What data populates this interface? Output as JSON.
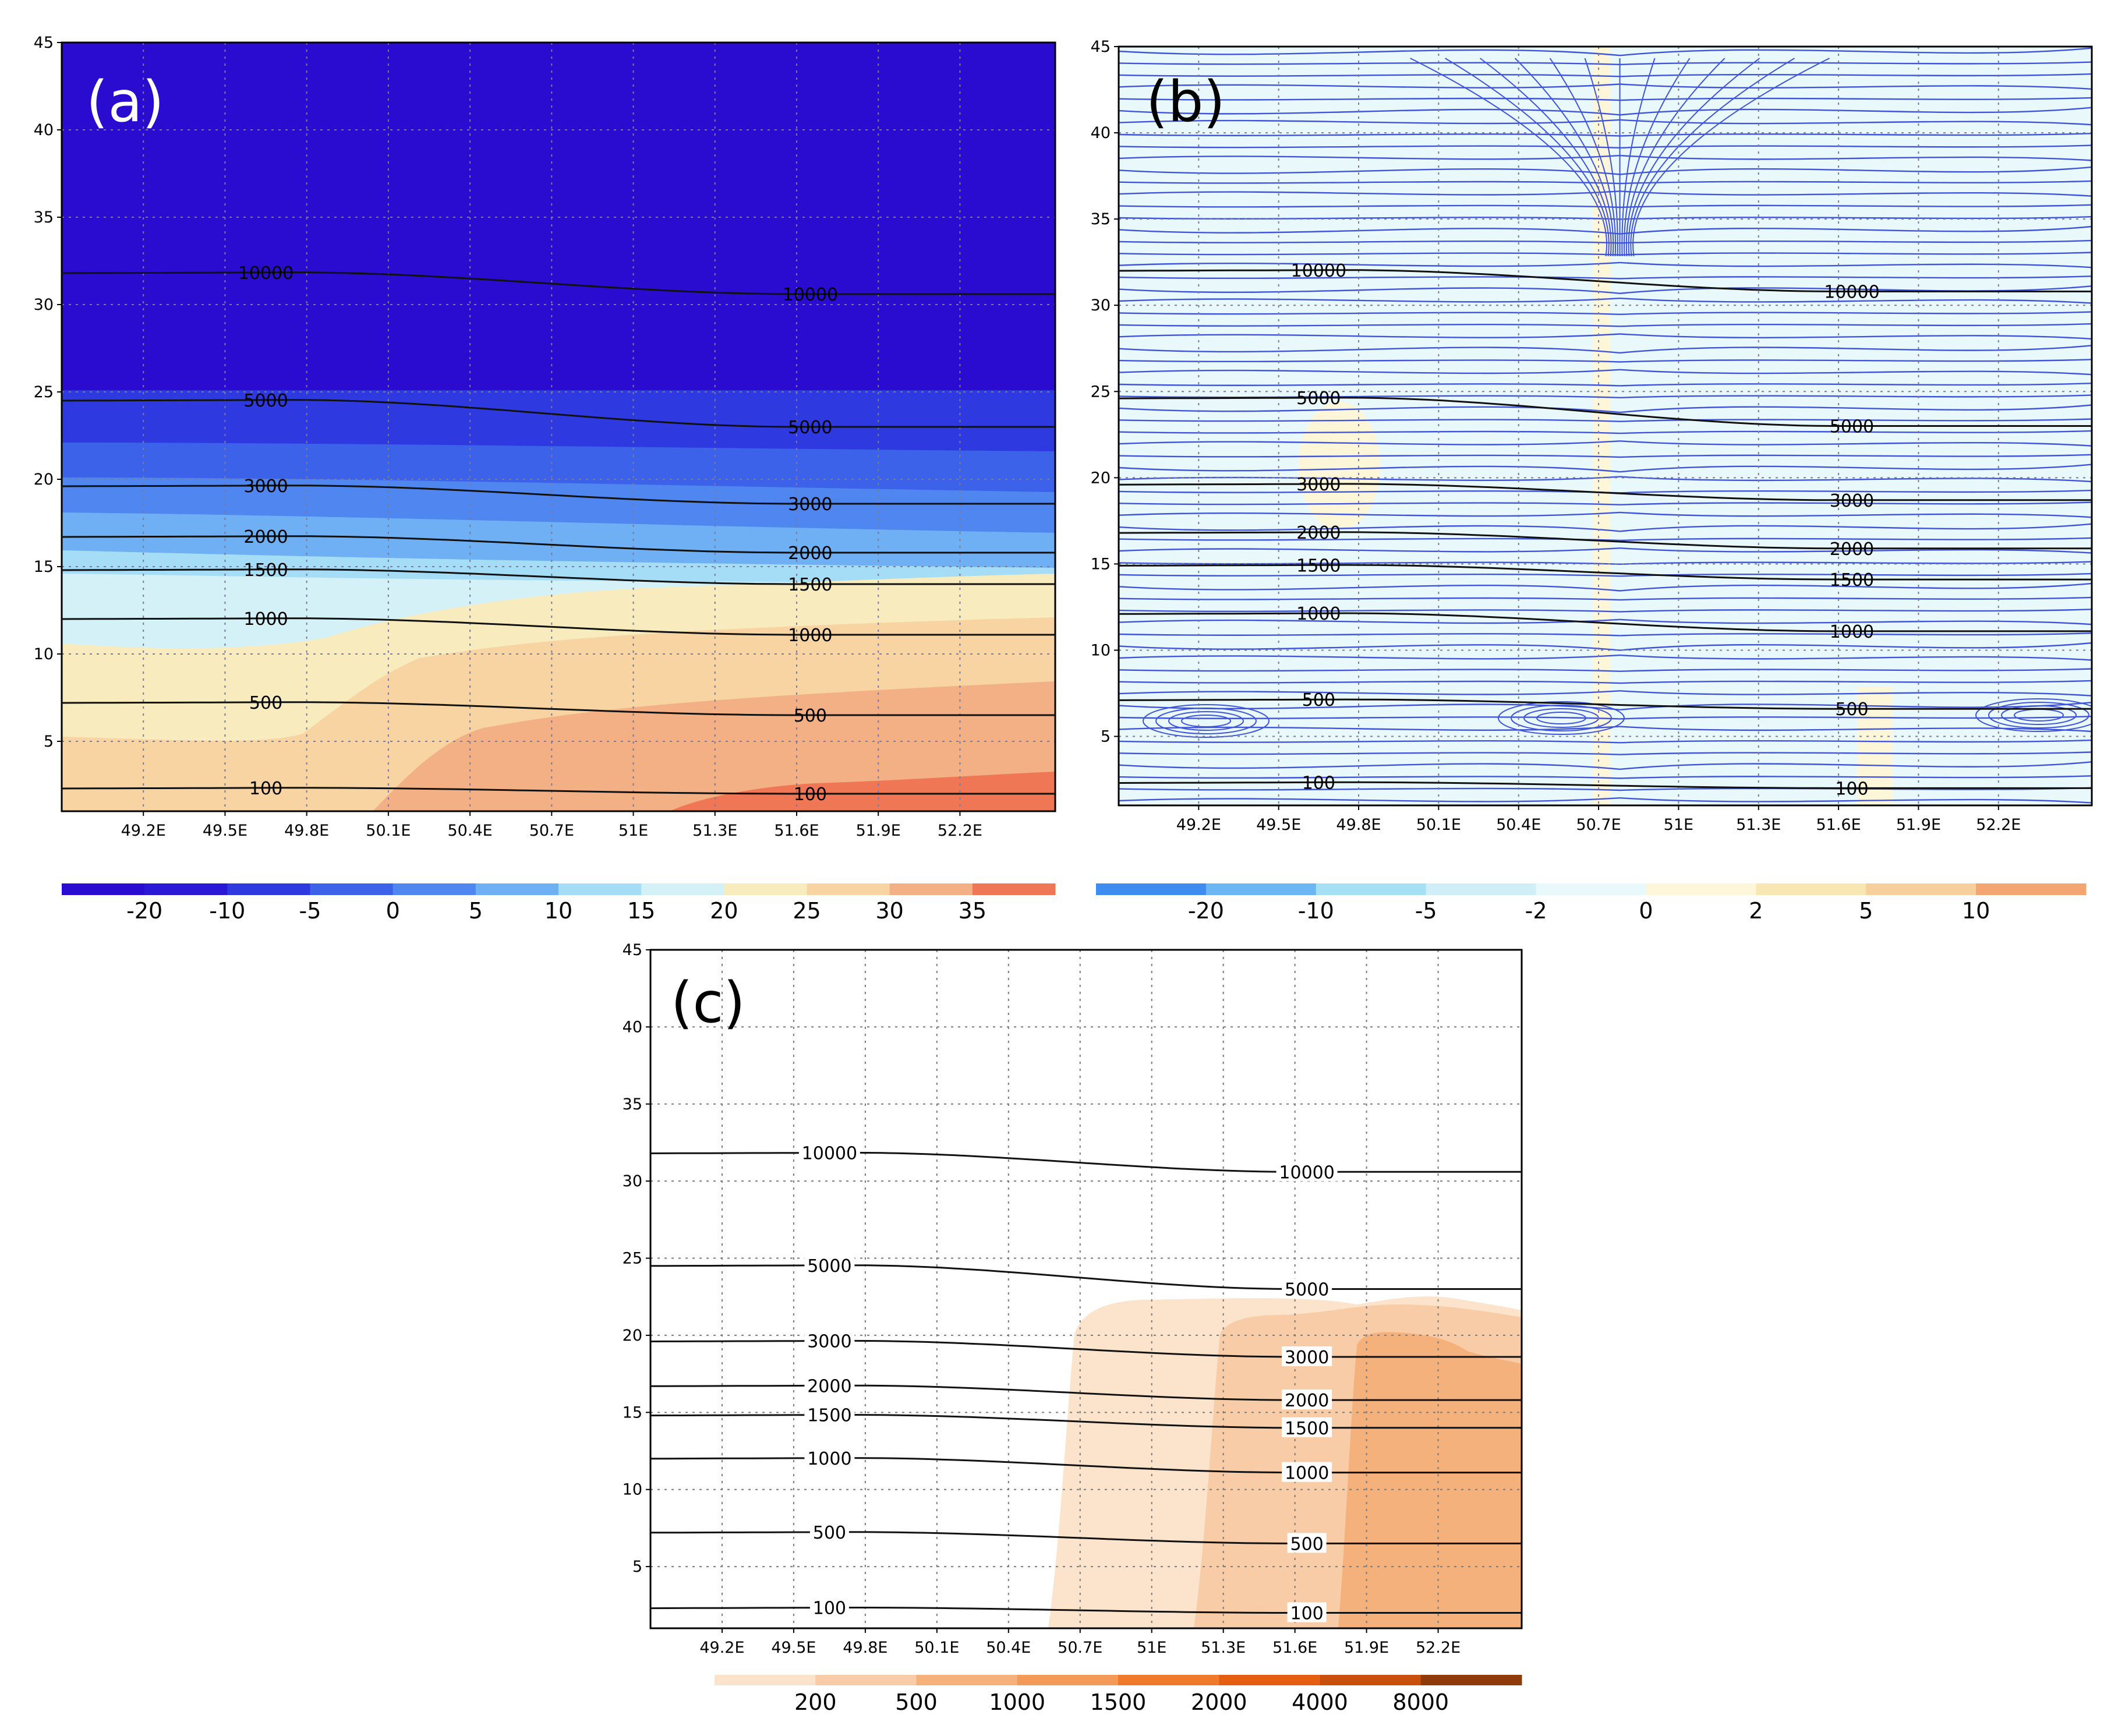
{
  "chart_data": [
    {
      "type": "heatmap",
      "panel": "(a)",
      "title": "",
      "xlabel": "",
      "ylabel": "",
      "x_ticks": [
        "49.2E",
        "49.5E",
        "49.8E",
        "50.1E",
        "50.4E",
        "50.7E",
        "51E",
        "51.3E",
        "51.6E",
        "51.9E",
        "52.2E"
      ],
      "y_ticks": [
        "5",
        "10",
        "15",
        "20",
        "25",
        "30",
        "35",
        "40",
        "45"
      ],
      "xlim": [
        48.9,
        52.55
      ],
      "ylim": [
        1,
        45
      ],
      "contours": [
        {
          "label": "10000",
          "left_y": 31.8,
          "right_y": 30.6
        },
        {
          "label": "5000",
          "left_y": 24.5,
          "right_y": 23.0
        },
        {
          "label": "3000",
          "left_y": 19.6,
          "right_y": 18.6
        },
        {
          "label": "2000",
          "left_y": 16.7,
          "right_y": 15.8
        },
        {
          "label": "1500",
          "left_y": 14.8,
          "right_y": 14.0
        },
        {
          "label": "1000",
          "left_y": 12.0,
          "right_y": 11.1
        },
        {
          "label": "500",
          "left_y": 7.2,
          "right_y": 6.5
        },
        {
          "label": "100",
          "left_y": 2.3,
          "right_y": 2.0
        }
      ],
      "colorbar": {
        "ticks": [
          "-20",
          "-10",
          "-5",
          "0",
          "5",
          "10",
          "15",
          "20",
          "25",
          "30",
          "35"
        ],
        "colors": [
          "#2a0bd0",
          "#2a18d6",
          "#2e3ae0",
          "#3d62ea",
          "#4f86ef",
          "#6fb0f5",
          "#a6ddf6",
          "#d3f1f7",
          "#f8ebbd",
          "#f7d4a2",
          "#f3b085",
          "#ef7755"
        ]
      },
      "background_color": "#2a0bd0"
    },
    {
      "type": "heatmap",
      "panel": "(b)",
      "title": "",
      "xlabel": "",
      "ylabel": "",
      "x_ticks": [
        "49.2E",
        "49.5E",
        "49.8E",
        "50.1E",
        "50.4E",
        "50.7E",
        "51E",
        "51.3E",
        "51.6E",
        "51.9E",
        "52.2E"
      ],
      "y_ticks": [
        "5",
        "10",
        "15",
        "20",
        "25",
        "30",
        "35",
        "40",
        "45"
      ],
      "xlim": [
        48.9,
        52.55
      ],
      "ylim": [
        1,
        45
      ],
      "overlay": "streamlines",
      "streamline_color": "#3f54d8",
      "contours": [
        {
          "label": "10000",
          "left_y": 32.0,
          "right_y": 30.8
        },
        {
          "label": "5000",
          "left_y": 24.6,
          "right_y": 23.0
        },
        {
          "label": "3000",
          "left_y": 19.6,
          "right_y": 18.7
        },
        {
          "label": "2000",
          "left_y": 16.8,
          "right_y": 15.9
        },
        {
          "label": "1500",
          "left_y": 14.9,
          "right_y": 14.1
        },
        {
          "label": "1000",
          "left_y": 12.1,
          "right_y": 11.1
        },
        {
          "label": "500",
          "left_y": 7.1,
          "right_y": 6.6
        },
        {
          "label": "100",
          "left_y": 2.3,
          "right_y": 2.0
        }
      ],
      "colorbar": {
        "ticks": [
          "-20",
          "-10",
          "-5",
          "-2",
          "0",
          "2",
          "5",
          "10"
        ],
        "colors": [
          "#3f8cf0",
          "#6cb6f3",
          "#a6e0f4",
          "#cfeef8",
          "#e9f8fb",
          "#fdf6d9",
          "#f9e7b3",
          "#f7cf9c",
          "#f3a672"
        ]
      }
    },
    {
      "type": "heatmap",
      "panel": "(c)",
      "title": "",
      "xlabel": "",
      "ylabel": "",
      "x_ticks": [
        "49.2E",
        "49.5E",
        "49.8E",
        "50.1E",
        "50.4E",
        "50.7E",
        "51E",
        "51.3E",
        "51.6E",
        "51.9E",
        "52.2E"
      ],
      "y_ticks": [
        "5",
        "10",
        "15",
        "20",
        "25",
        "30",
        "35",
        "40",
        "45"
      ],
      "xlim": [
        48.9,
        52.55
      ],
      "ylim": [
        1,
        45
      ],
      "contours": [
        {
          "label": "10000",
          "left_y": 31.8,
          "right_y": 30.6
        },
        {
          "label": "5000",
          "left_y": 24.5,
          "right_y": 23.0
        },
        {
          "label": "3000",
          "left_y": 19.6,
          "right_y": 18.6
        },
        {
          "label": "2000",
          "left_y": 16.7,
          "right_y": 15.8
        },
        {
          "label": "1500",
          "left_y": 14.8,
          "right_y": 14.0
        },
        {
          "label": "1000",
          "left_y": 12.0,
          "right_y": 11.1
        },
        {
          "label": "500",
          "left_y": 7.2,
          "right_y": 6.5
        },
        {
          "label": "100",
          "left_y": 2.3,
          "right_y": 2.0
        }
      ],
      "shaded_regions": [
        {
          "value": 200,
          "x_start": 50.63,
          "x_end": 52.55,
          "top": 22.5
        },
        {
          "value": 500,
          "x_start": 51.22,
          "x_end": 52.55,
          "top": 21.0
        },
        {
          "value": 1000,
          "x_start": 51.77,
          "x_end": 52.55,
          "top": 19.5
        }
      ],
      "colorbar": {
        "ticks": [
          "200",
          "500",
          "1000",
          "1500",
          "2000",
          "4000",
          "8000"
        ],
        "colors": [
          "#fbe3cc",
          "#f8cca6",
          "#f5b17c",
          "#f39a58",
          "#f07a2c",
          "#e45f12",
          "#c8500c",
          "#8e3a0a"
        ]
      }
    }
  ],
  "figure": {
    "panel_a_label": "(a)",
    "panel_b_label": "(b)",
    "panel_c_label": "(c)"
  }
}
